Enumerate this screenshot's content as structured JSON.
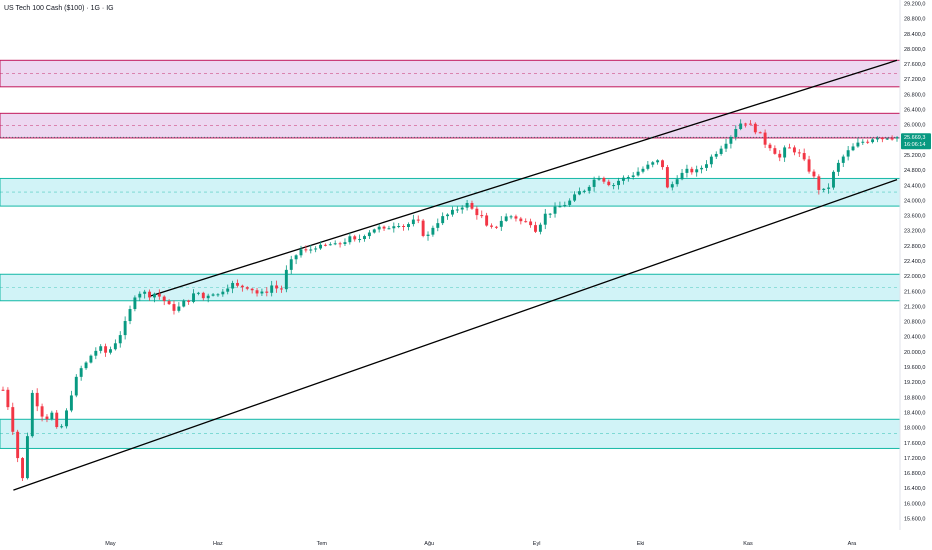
{
  "chart_data": {
    "type": "candlestick",
    "title": "US Tech 100 Cash ($100) · 1G · IG",
    "ylim": [
      15600,
      29300
    ],
    "y_ticks": [
      "29.200,0",
      "28.800,0",
      "28.400,0",
      "28.000,0",
      "27.600,0",
      "27.200,0",
      "26.800,0",
      "26.400,0",
      "26.000,0",
      "25.600,0",
      "25.200,0",
      "24.800,0",
      "24.400,0",
      "24.000,0",
      "23.600,0",
      "23.200,0",
      "22.800,0",
      "22.400,0",
      "22.000,0",
      "21.600,0",
      "21.200,0",
      "20.800,0",
      "20.400,0",
      "20.000,0",
      "19.600,0",
      "19.200,0",
      "18.800,0",
      "18.400,0",
      "18.000,0",
      "17.600,0",
      "17.200,0",
      "16.800,0",
      "16.400,0",
      "16.000,0",
      "15.600,0"
    ],
    "y_tick_values": [
      29200,
      28800,
      28400,
      28000,
      27600,
      27200,
      26800,
      26400,
      26000,
      25600,
      25200,
      24800,
      24400,
      24000,
      23600,
      23200,
      22800,
      22400,
      22000,
      21600,
      21200,
      20800,
      20400,
      20000,
      19600,
      19200,
      18800,
      18400,
      18000,
      17600,
      17200,
      16800,
      16400,
      16000,
      15600
    ],
    "x_ticks": [
      "May",
      "Haz",
      "Tem",
      "Ağu",
      "Eyl",
      "Eki",
      "Kas",
      "Ara"
    ],
    "x_tick_days": [
      31,
      62,
      92,
      123,
      154,
      184,
      215,
      245
    ],
    "x_range": [
      0,
      258
    ],
    "current_price": "25.669,3",
    "countdown": "16:06:14",
    "current_value": 25669,
    "zones": [
      {
        "low": 27000,
        "high": 27700,
        "mid": 27350,
        "kind": "supply"
      },
      {
        "low": 25650,
        "high": 26300,
        "mid": 25980,
        "kind": "supply"
      },
      {
        "low": 23850,
        "high": 24580,
        "mid": 24220,
        "kind": "demand"
      },
      {
        "low": 21350,
        "high": 22050,
        "mid": 21700,
        "kind": "demand"
      },
      {
        "low": 17450,
        "high": 18220,
        "mid": 17850,
        "kind": "demand"
      }
    ],
    "channel_lines": [
      {
        "x1": 3,
        "y1": 16350,
        "x2": 258,
        "y2": 24550
      },
      {
        "x1": 42,
        "y1": 21460,
        "x2": 258,
        "y2": 27700
      }
    ],
    "anchors": [
      [
        0,
        19000
      ],
      [
        2,
        18400
      ],
      [
        4,
        17300
      ],
      [
        6,
        16500
      ],
      [
        8,
        19000
      ],
      [
        10,
        18600
      ],
      [
        12,
        18200
      ],
      [
        14,
        18400
      ],
      [
        16,
        17800
      ],
      [
        18,
        18300
      ],
      [
        20,
        19000
      ],
      [
        22,
        19500
      ],
      [
        24,
        19700
      ],
      [
        26,
        20000
      ],
      [
        28,
        20100
      ],
      [
        30,
        19950
      ],
      [
        32,
        20200
      ],
      [
        34,
        20500
      ],
      [
        36,
        20900
      ],
      [
        38,
        21500
      ],
      [
        40,
        21600
      ],
      [
        42,
        21500
      ],
      [
        44,
        21550
      ],
      [
        46,
        21400
      ],
      [
        48,
        21200
      ],
      [
        50,
        21100
      ],
      [
        52,
        21300
      ],
      [
        54,
        21400
      ],
      [
        56,
        21600
      ],
      [
        58,
        21400
      ],
      [
        60,
        21600
      ],
      [
        62,
        21500
      ],
      [
        64,
        21700
      ],
      [
        66,
        21800
      ],
      [
        68,
        21700
      ],
      [
        70,
        21750
      ],
      [
        72,
        21650
      ],
      [
        74,
        21500
      ],
      [
        76,
        21600
      ],
      [
        78,
        21800
      ],
      [
        80,
        21550
      ],
      [
        82,
        22200
      ],
      [
        84,
        22500
      ],
      [
        86,
        22700
      ],
      [
        88,
        22650
      ],
      [
        90,
        22800
      ],
      [
        92,
        22750
      ],
      [
        94,
        22850
      ],
      [
        96,
        22800
      ],
      [
        98,
        22900
      ],
      [
        100,
        23000
      ],
      [
        102,
        22900
      ],
      [
        104,
        23100
      ],
      [
        106,
        23200
      ],
      [
        108,
        23300
      ],
      [
        110,
        23200
      ],
      [
        112,
        23350
      ],
      [
        114,
        23400
      ],
      [
        116,
        23300
      ],
      [
        118,
        23450
      ],
      [
        120,
        23400
      ],
      [
        122,
        22950
      ],
      [
        124,
        23300
      ],
      [
        126,
        23500
      ],
      [
        128,
        23600
      ],
      [
        130,
        23700
      ],
      [
        132,
        23850
      ],
      [
        134,
        23900
      ],
      [
        136,
        23700
      ],
      [
        138,
        23600
      ],
      [
        140,
        23200
      ],
      [
        142,
        23300
      ],
      [
        144,
        23500
      ],
      [
        146,
        23600
      ],
      [
        148,
        23550
      ],
      [
        150,
        23400
      ],
      [
        152,
        23450
      ],
      [
        154,
        23200
      ],
      [
        156,
        23600
      ],
      [
        158,
        23700
      ],
      [
        160,
        23800
      ],
      [
        162,
        23900
      ],
      [
        164,
        24000
      ],
      [
        166,
        24200
      ],
      [
        168,
        24300
      ],
      [
        170,
        24500
      ],
      [
        172,
        24650
      ],
      [
        174,
        24500
      ],
      [
        176,
        24400
      ],
      [
        178,
        24550
      ],
      [
        180,
        24600
      ],
      [
        182,
        24700
      ],
      [
        184,
        24800
      ],
      [
        186,
        24900
      ],
      [
        188,
        25000
      ],
      [
        190,
        25050
      ],
      [
        192,
        24200
      ],
      [
        194,
        24600
      ],
      [
        196,
        24700
      ],
      [
        198,
        24800
      ],
      [
        200,
        24750
      ],
      [
        202,
        24900
      ],
      [
        204,
        25100
      ],
      [
        206,
        25300
      ],
      [
        208,
        25500
      ],
      [
        210,
        25700
      ],
      [
        212,
        26000
      ],
      [
        214,
        26100
      ],
      [
        216,
        25950
      ],
      [
        218,
        25800
      ],
      [
        220,
        25500
      ],
      [
        222,
        25400
      ],
      [
        224,
        25100
      ],
      [
        226,
        25400
      ],
      [
        228,
        25350
      ],
      [
        230,
        25200
      ],
      [
        232,
        24900
      ],
      [
        234,
        24600
      ],
      [
        236,
        24200
      ],
      [
        238,
        24300
      ],
      [
        240,
        24800
      ],
      [
        242,
        25100
      ],
      [
        244,
        25300
      ],
      [
        246,
        25450
      ],
      [
        248,
        25550
      ],
      [
        250,
        25600
      ],
      [
        252,
        25700
      ],
      [
        254,
        25650
      ],
      [
        256,
        25700
      ],
      [
        258,
        25669
      ]
    ],
    "colors": {
      "up": "#089981",
      "down": "#f23645",
      "supply_fill": "#e1bee7",
      "supply_line": "#c2185b",
      "demand_fill": "#b2ebf2",
      "demand_line": "#14b8a6",
      "channel": "#000000",
      "price_tag": "#089981",
      "axis_text": "#131722"
    }
  }
}
